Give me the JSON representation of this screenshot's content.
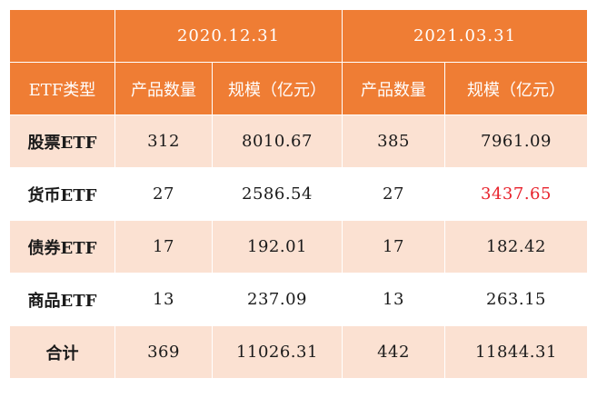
{
  "header": {
    "period_1": "2020.12.31",
    "period_2": "2021.03.31",
    "col_type": "ETF类型",
    "col_count": "产品数量",
    "col_scale": "规模（亿元）"
  },
  "rows": [
    {
      "type": "股票ETF",
      "count_2020": "312",
      "scale_2020": "8010.67",
      "count_2021": "385",
      "scale_2021": "7961.09"
    },
    {
      "type": "货币ETF",
      "count_2020": "27",
      "scale_2020": "2586.54",
      "count_2021": "27",
      "scale_2021": "3437.65"
    },
    {
      "type": "债券ETF",
      "count_2020": "17",
      "scale_2020": "192.01",
      "count_2021": "17",
      "scale_2021": "182.42"
    },
    {
      "type": "商品ETF",
      "count_2020": "13",
      "scale_2020": "237.09",
      "count_2021": "13",
      "scale_2021": "263.15"
    },
    {
      "type": "合计",
      "count_2020": "369",
      "scale_2020": "11026.31",
      "count_2021": "442",
      "scale_2021": "11844.31"
    }
  ],
  "colors": {
    "header_bg": "#ef7d34",
    "header_text": "#ffffff",
    "shaded_row_bg": "#fbe1d2",
    "highlight_text": "#e8222c"
  }
}
